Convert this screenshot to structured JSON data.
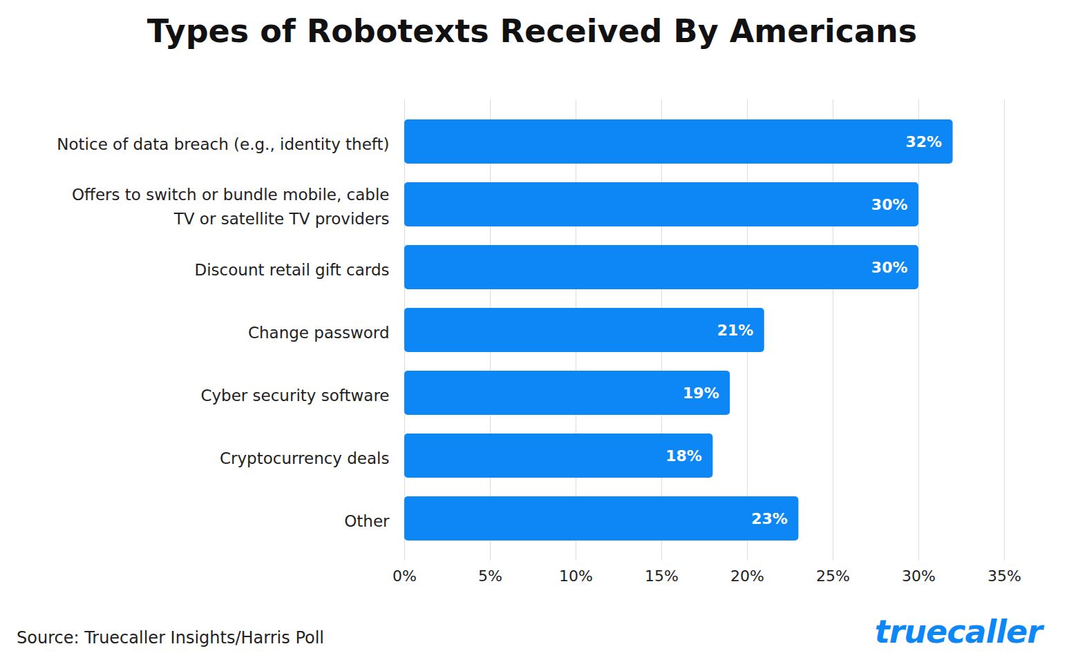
{
  "chart_data": {
    "type": "bar",
    "orientation": "horizontal",
    "title": "Types of Robotexts Received By Americans",
    "caption": "Source: Truecaller Insights/Harris Poll",
    "logo_text": "truecaller",
    "categories": [
      "Notice of data breach (e.g., identity theft)",
      "Offers to switch or bundle mobile, cable TV or satellite TV providers",
      "Discount retail gift cards",
      "Change password",
      "Cyber security software",
      "Cryptocurrency deals",
      "Other"
    ],
    "values": [
      32,
      30,
      30,
      21,
      19,
      18,
      23
    ],
    "value_labels": [
      "32%",
      "30%",
      "30%",
      "21%",
      "19%",
      "18%",
      "23%"
    ],
    "data_labels": true,
    "color": "#0d87f5",
    "xlim": [
      0,
      35
    ],
    "xticks": [
      {
        "value": 0,
        "label": "0%"
      },
      {
        "value": 5,
        "label": "5%"
      },
      {
        "value": 10,
        "label": "10%"
      },
      {
        "value": 15,
        "label": "15%"
      },
      {
        "value": 20,
        "label": "20%"
      },
      {
        "value": 25,
        "label": "25%"
      },
      {
        "value": 30,
        "label": "30%"
      },
      {
        "value": 35,
        "label": "35%"
      }
    ],
    "grid": true
  }
}
